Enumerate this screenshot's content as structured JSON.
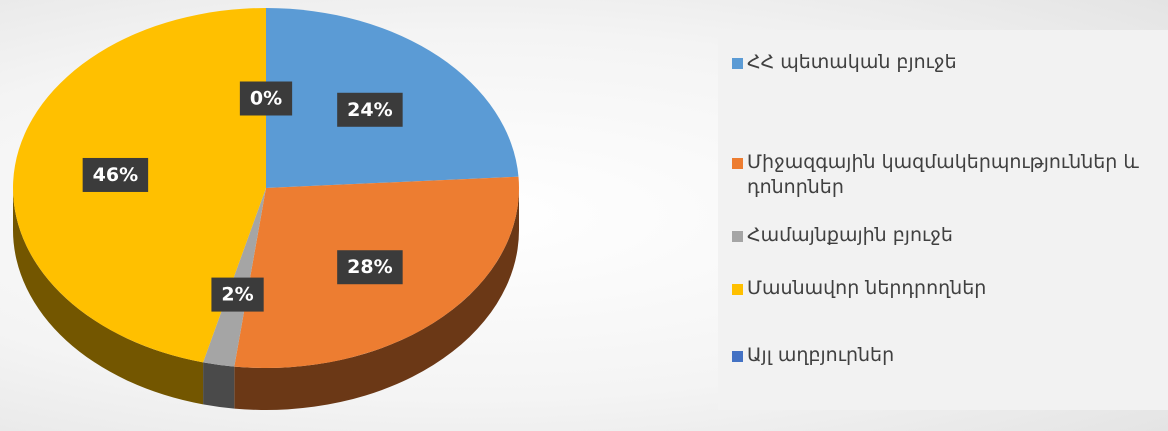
{
  "chart_data": {
    "type": "pie",
    "categories": [
      "ՀՀ պետական բյուջե",
      "Միջազգային կազմակերպություններ և դոնորներ",
      "Համայնքային բյուջե",
      "Մասնավոր ներդրողներ",
      "Այլ աղբյուրներ"
    ],
    "values": [
      24,
      28,
      2,
      46,
      0
    ],
    "value_labels": [
      "24%",
      "28%",
      "2%",
      "46%",
      "0%"
    ],
    "colors": [
      "#5b9bd5",
      "#ed7d31",
      "#a5a5a5",
      "#ffc000",
      "#4472c4"
    ],
    "legend": "right"
  }
}
